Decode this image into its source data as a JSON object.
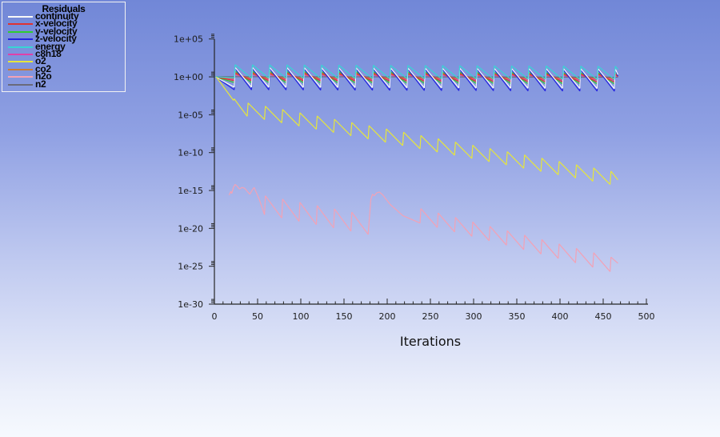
{
  "window": {
    "bg_gradient": [
      "#7187d7",
      "#8fa0e3",
      "#c0caf0",
      "#ecf0fb",
      "#f6f9fe"
    ],
    "axis_color": "#262626",
    "text_color": "#1c1c1c",
    "legend_border_color": "#f2f2f2"
  },
  "legend": {
    "title": "Residuals",
    "items": [
      "continuity",
      "x-velocity",
      "y-velocity",
      "z-velocity",
      "energy",
      "c8h18",
      "o2",
      "co2",
      "h2o",
      "n2"
    ]
  },
  "chart_data": {
    "type": "line",
    "title": "Residuals",
    "xlabel": "Iterations",
    "ylabel": "",
    "x_range": [
      0,
      500
    ],
    "y_log_range": [
      -30,
      5
    ],
    "x_major_tick_step": 50,
    "x_minor_tick_step": 10,
    "x_ticks": [
      "0",
      "50",
      "100",
      "150",
      "200",
      "250",
      "300",
      "350",
      "400",
      "450",
      "500"
    ],
    "y_ticks": [
      {
        "label": "1e+05",
        "log": 5
      },
      {
        "label": "1e+00",
        "log": 0
      },
      {
        "label": "1e-05",
        "log": -5
      },
      {
        "label": "1e-10",
        "log": -10
      },
      {
        "label": "1e-15",
        "log": -15
      },
      {
        "label": "1e-20",
        "log": -20
      },
      {
        "label": "1e-25",
        "log": -25
      },
      {
        "label": "1e-30",
        "log": -30
      }
    ],
    "grid": false,
    "legend_position": "top-left",
    "iterations_shown": 467,
    "sawtooth_period_iterations": 20,
    "series": [
      {
        "name": "y-velocity",
        "color": "#30cc30",
        "segments": [
          {
            "points": [
              [
                1,
                0
              ]
            ]
          },
          {
            "saw": {
              "from": 23,
              "to": 463,
              "period": 20,
              "trough0": -0.75,
              "trough1": -0.95,
              "jump": 1.5
            }
          },
          {
            "points": [
              [
                464,
                0.55
              ],
              [
                467,
                0.1
              ]
            ]
          }
        ]
      },
      {
        "name": "c8h18",
        "color": "#e040a8",
        "segments": [
          {
            "points": [
              [
                1,
                0
              ]
            ]
          },
          {
            "saw": {
              "from": 23,
              "to": 463,
              "period": 20,
              "trough0": -0.32,
              "trough1": -0.42,
              "jump": 0.62
            }
          },
          {
            "points": [
              [
                464,
                0.2
              ],
              [
                467,
                0.0
              ]
            ]
          }
        ]
      },
      {
        "name": "co2",
        "color": "#cc7c30",
        "segments": [
          {
            "points": [
              [
                1,
                0
              ]
            ]
          },
          {
            "saw": {
              "from": 23,
              "to": 463,
              "period": 20,
              "trough0": -0.22,
              "trough1": -0.32,
              "jump": 0.62
            }
          },
          {
            "points": [
              [
                464,
                0.3
              ],
              [
                467,
                0.05
              ]
            ]
          }
        ]
      },
      {
        "name": "n2",
        "color": "#6a6a7a",
        "segments": [
          {
            "points": [
              [
                1,
                0.02
              ],
              [
                467,
                -0.04
              ]
            ]
          }
        ]
      },
      {
        "name": "x-velocity",
        "color": "#e03232",
        "segments": [
          {
            "points": [
              [
                1,
                0
              ]
            ]
          },
          {
            "saw": {
              "from": 23,
              "to": 463,
              "period": 20,
              "trough0": -0.5,
              "trough1": -0.68,
              "jump": 1.05
            }
          },
          {
            "points": [
              [
                464,
                0.37
              ],
              [
                467,
                0.05
              ]
            ]
          }
        ]
      },
      {
        "name": "z-velocity",
        "color": "#2424e0",
        "segments": [
          {
            "points": [
              [
                1,
                0
              ]
            ]
          },
          {
            "saw": {
              "from": 23,
              "to": 463,
              "period": 20,
              "trough0": -1.7,
              "trough1": -1.9,
              "jump": 2.8
            }
          },
          {
            "points": [
              [
                464,
                0.9
              ],
              [
                467,
                0.1
              ]
            ]
          }
        ]
      },
      {
        "name": "continuity",
        "color": "#f8f8f8",
        "segments": [
          {
            "points": [
              [
                1,
                0
              ]
            ]
          },
          {
            "saw": {
              "from": 23,
              "to": 463,
              "period": 20,
              "trough0": -1.35,
              "trough1": -1.55,
              "jump": 2.6
            }
          },
          {
            "points": [
              [
                464,
                1.05
              ],
              [
                467,
                0.3
              ]
            ]
          }
        ]
      },
      {
        "name": "energy",
        "color": "#38d4d4",
        "segments": [
          {
            "points": [
              [
                1,
                0
              ]
            ]
          },
          {
            "saw": {
              "from": 23,
              "to": 463,
              "period": 20,
              "trough0": -0.15,
              "trough1": -0.35,
              "jump": 1.75
            }
          },
          {
            "points": [
              [
                464,
                1.4
              ],
              [
                467,
                1.0
              ]
            ]
          }
        ]
      },
      {
        "name": "o2",
        "color": "#e6e63c",
        "segments": [
          {
            "points": [
              [
                2,
                0
              ],
              [
                22,
                -3.1
              ],
              [
                23,
                -2.9
              ]
            ]
          },
          {
            "saw": {
              "from": 38,
              "to": 458,
              "period": 20,
              "trough0": -5.2,
              "trough1": -14.2,
              "jump": 1.75
            }
          },
          {
            "points": [
              [
                459,
                -12.45
              ],
              [
                467,
                -13.6
              ]
            ]
          }
        ]
      },
      {
        "name": "h2o",
        "color": "#f2a2b6",
        "segments": [
          {
            "points": [
              [
                17,
                -15.6
              ],
              [
                19,
                -15.1
              ],
              [
                20,
                -15.4
              ],
              [
                22,
                -14.6
              ],
              [
                24,
                -14.2
              ],
              [
                26,
                -14.4
              ],
              [
                29,
                -14.8
              ],
              [
                32,
                -14.6
              ],
              [
                35,
                -14.7
              ],
              [
                38,
                -15.1
              ],
              [
                41,
                -15.5
              ],
              [
                44,
                -14.9
              ],
              [
                46,
                -14.6
              ],
              [
                52,
                -16.2
              ]
            ]
          },
          {
            "saw": {
              "from": 58,
              "to": 178,
              "period": 20,
              "trough0": -18.2,
              "trough1": -20.8,
              "jump": 2.5
            }
          },
          {
            "points": [
              [
                181,
                -16.2
              ],
              [
                183,
                -15.5
              ],
              [
                185,
                -15.7
              ],
              [
                188,
                -15.3
              ],
              [
                191,
                -15.2
              ],
              [
                195,
                -15.6
              ],
              [
                199,
                -16.2
              ],
              [
                204,
                -16.9
              ],
              [
                211,
                -17.6
              ],
              [
                218,
                -18.3
              ]
            ]
          },
          {
            "saw": {
              "from": 238,
              "to": 458,
              "period": 20,
              "trough0": -19.3,
              "trough1": -25.7,
              "jump": 1.9
            }
          },
          {
            "points": [
              [
                459,
                -23.8
              ],
              [
                467,
                -24.6
              ]
            ]
          }
        ]
      }
    ]
  }
}
